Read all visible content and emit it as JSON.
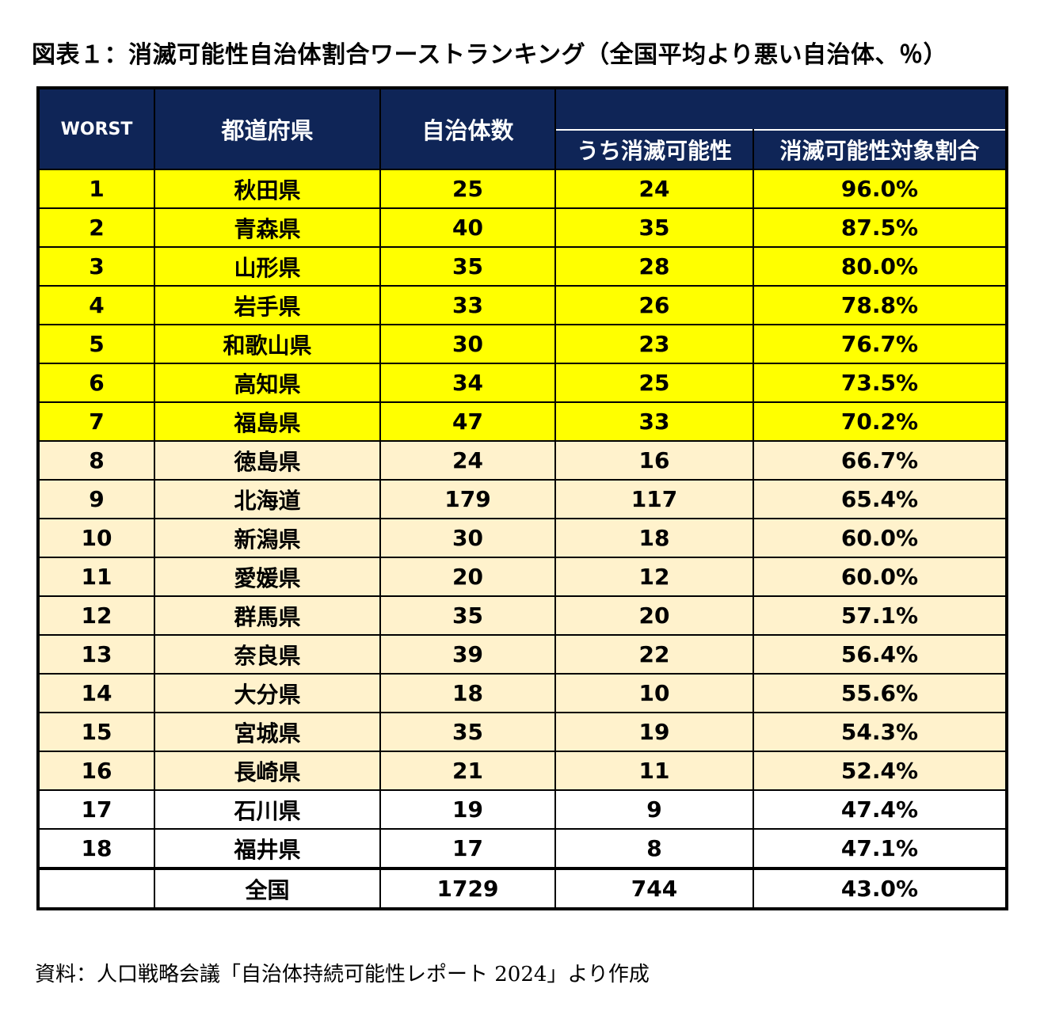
{
  "title": "図表１：消滅可能性自治体割合ワーストランキング（全国平均より悪い自治体、％）",
  "source": "資料：人口戦略会議「自治体持続可能性レポート 2024」より作成",
  "colors": {
    "header_bg": "#0f2557",
    "top7": "#ffff00",
    "above_half": "#fff2cc",
    "plain": "#ffffff"
  },
  "headers": {
    "worst": "WORST",
    "prefecture": "都道府県",
    "municipalities": "自治体数",
    "vanishing": "うち消滅可能性",
    "ratio": "消滅可能性対象割合"
  },
  "chart_data": {
    "type": "table",
    "title": "図表１：消滅可能性自治体割合ワーストランキング（全国平均より悪い自治体、％）",
    "columns": [
      "WORST",
      "都道府県",
      "自治体数",
      "うち消滅可能性",
      "消滅可能性対象割合"
    ],
    "rows": [
      {
        "rank": "1",
        "pref": "秋田県",
        "total": "25",
        "vanish": "24",
        "ratio": "96.0%",
        "tier": "yellow"
      },
      {
        "rank": "2",
        "pref": "青森県",
        "total": "40",
        "vanish": "35",
        "ratio": "87.5%",
        "tier": "yellow"
      },
      {
        "rank": "3",
        "pref": "山形県",
        "total": "35",
        "vanish": "28",
        "ratio": "80.0%",
        "tier": "yellow"
      },
      {
        "rank": "4",
        "pref": "岩手県",
        "total": "33",
        "vanish": "26",
        "ratio": "78.8%",
        "tier": "yellow"
      },
      {
        "rank": "5",
        "pref": "和歌山県",
        "total": "30",
        "vanish": "23",
        "ratio": "76.7%",
        "tier": "yellow"
      },
      {
        "rank": "6",
        "pref": "高知県",
        "total": "34",
        "vanish": "25",
        "ratio": "73.5%",
        "tier": "yellow"
      },
      {
        "rank": "7",
        "pref": "福島県",
        "total": "47",
        "vanish": "33",
        "ratio": "70.2%",
        "tier": "yellow"
      },
      {
        "rank": "8",
        "pref": "徳島県",
        "total": "24",
        "vanish": "16",
        "ratio": "66.7%",
        "tier": "beige"
      },
      {
        "rank": "9",
        "pref": "北海道",
        "total": "179",
        "vanish": "117",
        "ratio": "65.4%",
        "tier": "beige"
      },
      {
        "rank": "10",
        "pref": "新潟県",
        "total": "30",
        "vanish": "18",
        "ratio": "60.0%",
        "tier": "beige"
      },
      {
        "rank": "11",
        "pref": "愛媛県",
        "total": "20",
        "vanish": "12",
        "ratio": "60.0%",
        "tier": "beige"
      },
      {
        "rank": "12",
        "pref": "群馬県",
        "total": "35",
        "vanish": "20",
        "ratio": "57.1%",
        "tier": "beige"
      },
      {
        "rank": "13",
        "pref": "奈良県",
        "total": "39",
        "vanish": "22",
        "ratio": "56.4%",
        "tier": "beige"
      },
      {
        "rank": "14",
        "pref": "大分県",
        "total": "18",
        "vanish": "10",
        "ratio": "55.6%",
        "tier": "beige"
      },
      {
        "rank": "15",
        "pref": "宮城県",
        "total": "35",
        "vanish": "19",
        "ratio": "54.3%",
        "tier": "beige"
      },
      {
        "rank": "16",
        "pref": "長崎県",
        "total": "21",
        "vanish": "11",
        "ratio": "52.4%",
        "tier": "beige"
      },
      {
        "rank": "17",
        "pref": "石川県",
        "total": "19",
        "vanish": "9",
        "ratio": "47.4%",
        "tier": "white"
      },
      {
        "rank": "18",
        "pref": "福井県",
        "total": "17",
        "vanish": "8",
        "ratio": "47.1%",
        "tier": "white"
      }
    ],
    "total_row": {
      "rank": "",
      "pref": "全国",
      "total": "1729",
      "vanish": "744",
      "ratio": "43.0%"
    }
  }
}
